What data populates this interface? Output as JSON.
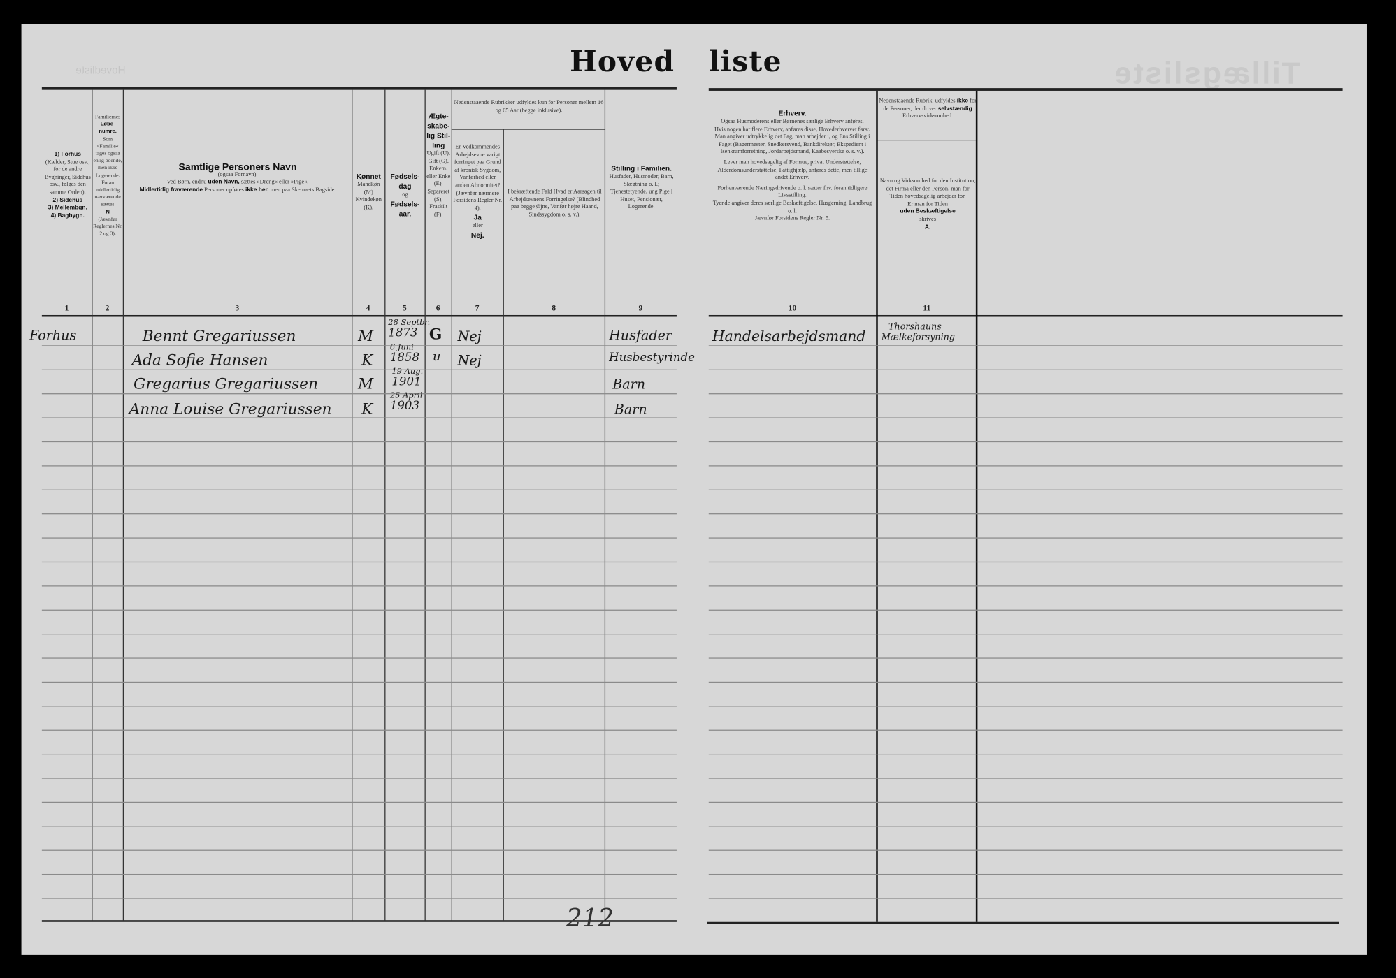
{
  "title": {
    "left": "Hoved",
    "right": "liste"
  },
  "columns": [
    {
      "number": "1",
      "header": [
        "1) Forhus",
        "(Kælder, Stue osv.; for de andre Bygninger, Sidehus osv., følges den samme Orden).",
        "2) Sidehus",
        "3) Mellembgn.",
        "4) Bagbygn."
      ]
    },
    {
      "number": "2",
      "header": [
        "Familiernes",
        "Løbe-numre.",
        "Som »Familie« tages ogsaa enlig boende, men ikke Logerende. Foran midlertidig nærværende sættes",
        "N",
        "(Jævnfør Reglernes Nr. 2 og 3)."
      ]
    },
    {
      "number": "3",
      "header": [
        "Samtlige Personers Navn",
        "(ogsaa Fornavn).",
        "Ved Børn, endnu",
        "uden Navn,",
        "sættes »Dreng« eller »Pige«.",
        "Midlertidig fraværende",
        "Personer opføres",
        "ikke her,",
        "men paa Skemaets Bagside."
      ]
    },
    {
      "number": "4",
      "header": [
        "Kønnet",
        "Mandkøn (M) Kvindekøn (K)."
      ]
    },
    {
      "number": "5",
      "header": [
        "Fødsels-dag",
        "og",
        "Fødsels-aar."
      ]
    },
    {
      "number": "6",
      "header": [
        "Ægte-skabe-lig Stil-ling",
        "Ugift (U), Gift (G), Enkem. eller Enke (E), Separeret (S), Fraskilt (F)."
      ]
    },
    {
      "number": "7",
      "header": [
        "Er Vedkommendes Arbejdsevne varigt forringet paa Grund af kronisk Sygdom, Vanførhed eller anden Abnormitet? (Jævnfør nærmere Forsidens Regler Nr. 4).",
        "Ja",
        "eller",
        "Nej."
      ]
    },
    {
      "number": "8",
      "header": [
        "I bekræftende Fald Hvad er Aarsagen til Arbejdsevnens Forringelse? (Blindhed paa begge Øjne, Vanfør højre Haand, Sindssygdom o. s. v.)."
      ]
    },
    {
      "number": "9",
      "header": [
        "Stilling i Familien.",
        "Husfader, Husmoder, Barn, Slægtning o. l.; Tjenestetyende, ung Pige i Huset, Pensionær, Logerende."
      ]
    },
    {
      "number": "10",
      "header": [
        "Erhverv.",
        "Ogsaa Husmoderens eller Børnenes særlige Erhverv anføres.",
        "Hvis nogen har flere Erhverv, anføres disse, Hovederhvervet først.",
        "Man angiver udtrykkelig det Fag, man arbejder i, og Ens Stilling i Faget (Bagermester, Snedkersvend, Bankdirektør, Ekspedient i Isenkramforretning, Jordarbejdsmand, Kaabesyerske o. s. v.).",
        "Lever man hovedsagelig af Formue, privat Understøttelse, Alderdomsunderstøttelse, Fattighjælp, anføres dette, men tillige andet Erhverv.",
        "Forhenværende Næringsdrivende o. l. sætter fhv. foran tidligere Livsstilling.",
        "Tyende angiver deres særlige Beskæftigelse, Husgerning, Landbrug o. l.",
        "Jævnfør Forsidens Regler Nr. 5."
      ]
    },
    {
      "number": "11",
      "header": [
        "Navn og Virksomhed for den Institution, det Firma eller den Person, man for Tiden hovedsagelig arbejder for.",
        "Er man for Tiden",
        "uden Beskæftigelse",
        "skrives",
        "A."
      ]
    }
  ],
  "group_header_7_8": "Nedenstaaende Rubrikker udfyldes kun for Personer mellem 16 og 65 Aar (begge inklusive).",
  "group_header_11": [
    "Nedenstaaende Rubrik, udfyldes",
    "ikke",
    "for de Personer, der driver",
    "selvstændig",
    "Erhvervsvirksomhed."
  ],
  "rows": [
    {
      "building": "Forhus",
      "name": "Bennt Gregariussen",
      "sex": "M",
      "birth_day": "28 Septbr.",
      "birth_year": "1873",
      "marital": "G",
      "disability": "Nej",
      "family_role": "Husfader",
      "occupation": "Handelsarbejdsmand",
      "employer": [
        "Thorshauns",
        "Mælkeforsyning"
      ]
    },
    {
      "building": "",
      "name": "Ada Sofie Hansen",
      "sex": "K",
      "birth_day": "6 Juni",
      "birth_year": "1858",
      "marital": "u",
      "disability": "Nej",
      "family_role": "Husbestyrinde",
      "occupation": "",
      "employer": [
        "",
        ""
      ]
    },
    {
      "building": "",
      "name": "Gregarius Gregariussen",
      "sex": "M",
      "birth_day": "19 Aug.",
      "birth_year": "1901",
      "marital": "",
      "disability": "",
      "family_role": "Barn",
      "occupation": "",
      "employer": [
        "",
        ""
      ]
    },
    {
      "building": "",
      "name": "Anna Louise Gregariussen",
      "sex": "K",
      "birth_day": "25 April",
      "birth_year": "1903",
      "marital": "",
      "disability": "",
      "family_role": "Barn",
      "occupation": "",
      "employer": [
        "",
        ""
      ]
    }
  ],
  "page_number": "212"
}
